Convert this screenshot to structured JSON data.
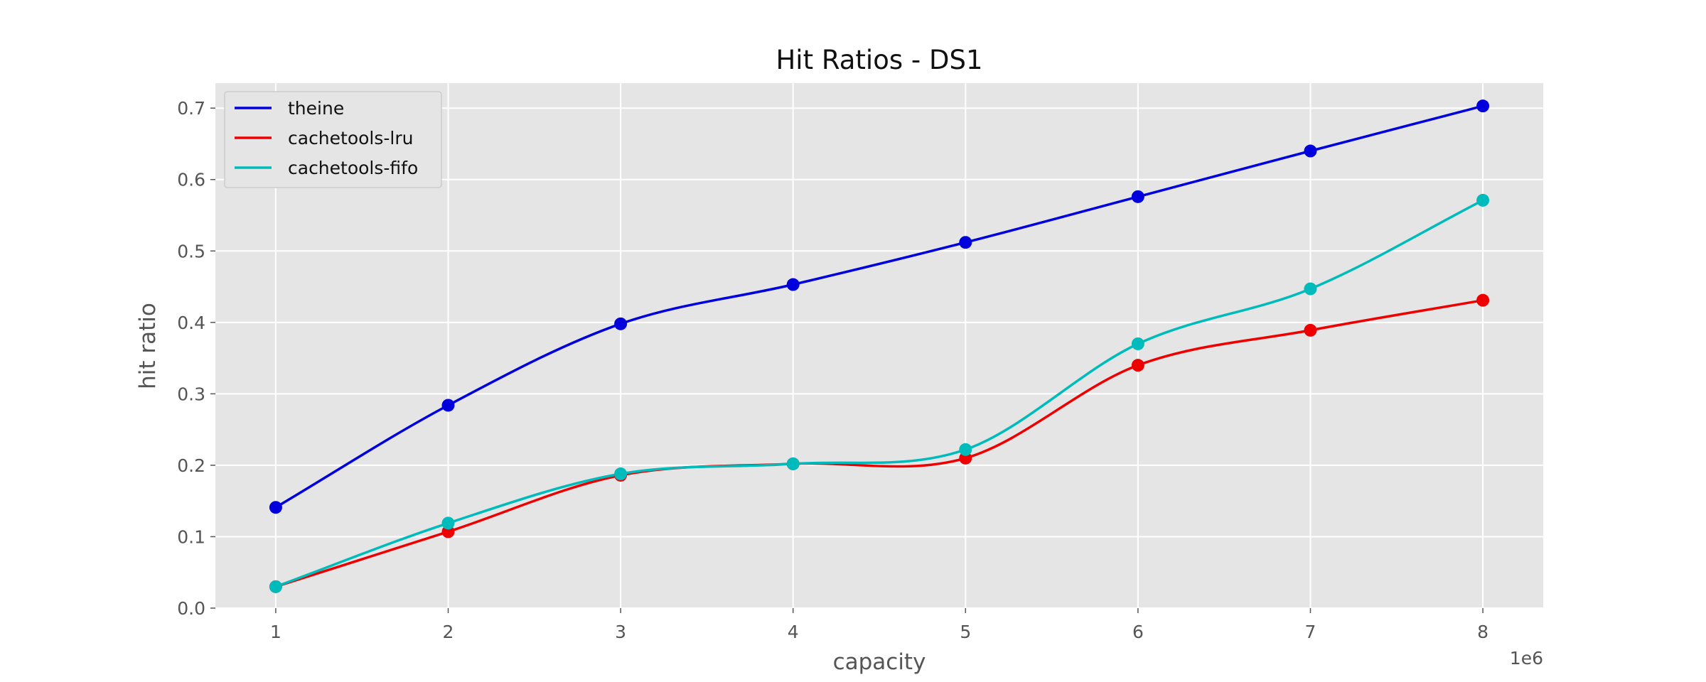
{
  "chart_data": {
    "type": "line",
    "title": "Hit Ratios - DS1",
    "xlabel": "capacity",
    "ylabel": "hit ratio",
    "x_offset_text": "1e6",
    "x": [
      1,
      2,
      3,
      4,
      5,
      6,
      7,
      8
    ],
    "x_ticks": [
      1,
      2,
      3,
      4,
      5,
      6,
      7,
      8
    ],
    "x_tick_labels": [
      "1",
      "2",
      "3",
      "4",
      "5",
      "6",
      "7",
      "8"
    ],
    "xlim": [
      0.65,
      8.35
    ],
    "y_ticks": [
      0.0,
      0.1,
      0.2,
      0.3,
      0.4,
      0.5,
      0.6,
      0.7
    ],
    "y_tick_labels": [
      "0.0",
      "0.1",
      "0.2",
      "0.3",
      "0.4",
      "0.5",
      "0.6",
      "0.7"
    ],
    "ylim": [
      0,
      0.735
    ],
    "grid": true,
    "legend_position": "top-left",
    "series": [
      {
        "name": "theine",
        "color": "#0000dd",
        "values": [
          0.141,
          0.284,
          0.398,
          0.453,
          0.512,
          0.576,
          0.64,
          0.703
        ]
      },
      {
        "name": "cachetools-lru",
        "color": "#ee0000",
        "values": [
          0.03,
          0.107,
          0.186,
          0.202,
          0.21,
          0.34,
          0.389,
          0.431
        ]
      },
      {
        "name": "cachetools-fifo",
        "color": "#00bbbb",
        "values": [
          0.03,
          0.119,
          0.188,
          0.202,
          0.222,
          0.37,
          0.447,
          0.571
        ]
      }
    ]
  }
}
